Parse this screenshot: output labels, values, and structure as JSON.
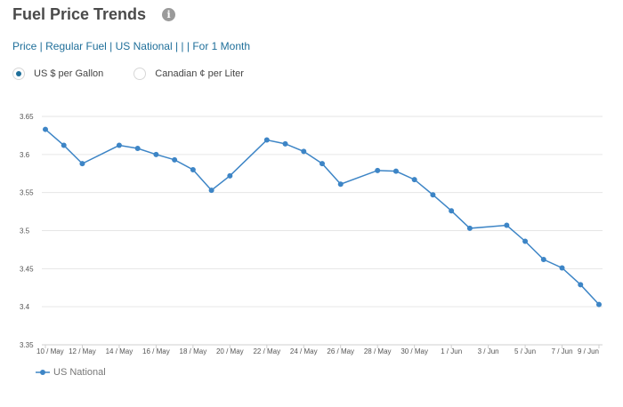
{
  "header": {
    "title": "Fuel Price Trends",
    "subtitle": "Price | Regular Fuel | US National | | | For 1 Month"
  },
  "units": [
    {
      "label": "US $ per Gallon",
      "selected": true
    },
    {
      "label": "Canadian ¢ per Liter",
      "selected": false
    }
  ],
  "colors": {
    "series": "#3d85c6",
    "grid": "#e6e6e6",
    "accent": "#1f6f9a"
  },
  "chart_data": {
    "type": "line",
    "ylim": [
      3.35,
      3.65
    ],
    "yticks": [
      "3.35",
      "3.4",
      "3.45",
      "3.5",
      "3.55",
      "3.6",
      "3.65"
    ],
    "xticks": [
      "10 / May",
      "12 / May",
      "14 / May",
      "16 / May",
      "18 / May",
      "20 / May",
      "22 / May",
      "24 / May",
      "26 / May",
      "28 / May",
      "30 / May",
      "1 / Jun",
      "3 / Jun",
      "5 / Jun",
      "7 / Jun",
      "9 / Jun"
    ],
    "x": [
      "10 / May",
      "11 / May",
      "12 / May",
      "14 / May",
      "15 / May",
      "16 / May",
      "17 / May",
      "18 / May",
      "19 / May",
      "20 / May",
      "22 / May",
      "23 / May",
      "24 / May",
      "25 / May",
      "26 / May",
      "28 / May",
      "29 / May",
      "30 / May",
      "31 / May",
      "1 / Jun",
      "2 / Jun",
      "4 / Jun",
      "5 / Jun",
      "6 / Jun",
      "7 / Jun",
      "8 / Jun",
      "9 / Jun"
    ],
    "x_index": [
      0,
      1,
      2,
      4,
      5,
      6,
      7,
      8,
      9,
      10,
      12,
      13,
      14,
      15,
      16,
      18,
      19,
      20,
      21,
      22,
      23,
      25,
      26,
      27,
      28,
      29,
      30
    ],
    "grid": true,
    "legend_position": "bottom-left",
    "series": [
      {
        "name": "US National",
        "values": [
          3.633,
          3.612,
          3.588,
          3.612,
          3.608,
          3.6,
          3.593,
          3.58,
          3.553,
          3.572,
          3.619,
          3.614,
          3.604,
          3.588,
          3.561,
          3.579,
          3.578,
          3.567,
          3.547,
          3.526,
          3.503,
          3.507,
          3.486,
          3.462,
          3.451,
          3.429,
          3.403
        ]
      }
    ]
  }
}
